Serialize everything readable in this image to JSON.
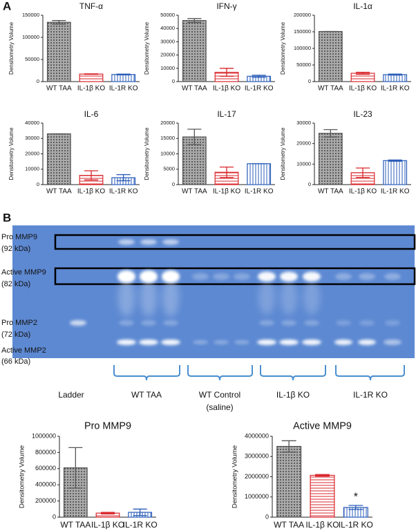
{
  "panel_labels": [
    "A",
    "B"
  ],
  "chart_data": [
    {
      "type": "bar",
      "title": "TNF-α",
      "ylabel": "Densitometry Volume",
      "categories": [
        "WT TAA",
        "IL-1β KO",
        "IL-1R KO"
      ],
      "values": [
        134000,
        17000,
        16000
      ],
      "errors": [
        4000,
        500,
        1000
      ],
      "colors": [
        "#555555",
        "#d9262b",
        "#2a5cb8"
      ],
      "ylim": [
        0,
        150000
      ],
      "yticks": [
        0,
        50000,
        100000,
        150000
      ]
    },
    {
      "type": "bar",
      "title": "IFN-γ",
      "ylabel": "Densitometry Volume",
      "categories": [
        "WT TAA",
        "IL-1β KO",
        "IL-1R KO"
      ],
      "values": [
        46000,
        7000,
        4000
      ],
      "errors": [
        1500,
        3000,
        800
      ],
      "colors": [
        "#555555",
        "#d9262b",
        "#2a5cb8"
      ],
      "ylim": [
        0,
        50000
      ],
      "yticks": [
        0,
        10000,
        20000,
        30000,
        40000,
        50000
      ]
    },
    {
      "type": "bar",
      "title": "IL-1α",
      "ylabel": "Densitometry Volume",
      "categories": [
        "WT TAA",
        "IL-1β KO",
        "IL-1R KO"
      ],
      "values": [
        151000,
        25000,
        21000
      ],
      "errors": [
        0,
        3000,
        1500
      ],
      "colors": [
        "#555555",
        "#d9262b",
        "#2a5cb8"
      ],
      "ylim": [
        0,
        200000
      ],
      "yticks": [
        0,
        50000,
        100000,
        150000,
        200000
      ]
    },
    {
      "type": "bar",
      "title": "IL-6",
      "ylabel": "Densitometry Volume",
      "categories": [
        "WT TAA",
        "IL-1β KO",
        "IL-1R KO"
      ],
      "values": [
        33000,
        6000,
        4500
      ],
      "errors": [
        0,
        3000,
        2000
      ],
      "colors": [
        "#555555",
        "#d9262b",
        "#2a5cb8"
      ],
      "ylim": [
        0,
        40000
      ],
      "yticks": [
        0,
        10000,
        20000,
        30000,
        40000
      ]
    },
    {
      "type": "bar",
      "title": "IL-17",
      "ylabel": "Densitometry Volume",
      "categories": [
        "WT TAA",
        "IL-1β KO",
        "IL-1R KO"
      ],
      "values": [
        15500,
        4000,
        6800
      ],
      "errors": [
        2500,
        1700,
        0
      ],
      "colors": [
        "#555555",
        "#d9262b",
        "#2a5cb8"
      ],
      "ylim": [
        0,
        20000
      ],
      "yticks": [
        0,
        5000,
        10000,
        15000,
        20000
      ]
    },
    {
      "type": "bar",
      "title": "IL-23",
      "ylabel": "Densitometry Volume",
      "categories": [
        "WT TAA",
        "IL-1β KO",
        "IL-1R KO"
      ],
      "values": [
        25000,
        5800,
        11700
      ],
      "errors": [
        1800,
        2300,
        300
      ],
      "colors": [
        "#555555",
        "#d9262b",
        "#2a5cb8"
      ],
      "ylim": [
        0,
        30000
      ],
      "yticks": [
        0,
        10000,
        20000,
        30000
      ]
    },
    {
      "type": "bar",
      "title": "Pro MMP9",
      "ylabel": "Densitometry Volume",
      "categories": [
        "WT TAA",
        "IL-1β KO",
        "IL-1R KO"
      ],
      "values": [
        610000,
        50000,
        60000
      ],
      "errors": [
        250000,
        10000,
        40000
      ],
      "colors": [
        "#555555",
        "#d9262b",
        "#2a5cb8"
      ],
      "ylim": [
        0,
        1000000
      ],
      "yticks": [
        0,
        200000,
        400000,
        600000,
        800000,
        1000000
      ]
    },
    {
      "type": "bar",
      "title": "Active MMP9",
      "ylabel": "Densitometry Volume",
      "categories": [
        "WT TAA",
        "IL-1β KO",
        "IL-1R KO"
      ],
      "values": [
        3500000,
        2070000,
        480000
      ],
      "errors": [
        280000,
        40000,
        100000
      ],
      "colors": [
        "#555555",
        "#d9262b",
        "#2a5cb8"
      ],
      "ylim": [
        0,
        4000000
      ],
      "yticks": [
        0,
        1000000,
        2000000,
        3000000,
        4000000
      ],
      "annotation": "*"
    }
  ],
  "gel": {
    "band_labels": [
      "Pro MMP9",
      "(92 kDa)",
      "Active MMP9",
      "(82 kDa)",
      "Pro MMP2",
      "(72 kDa)",
      "Active MMP2",
      "(66 kDa)"
    ],
    "group_labels": [
      "Ladder",
      "WT TAA",
      "WT Control",
      "(saline)",
      "IL-1β KO",
      "IL-1R KO"
    ]
  }
}
